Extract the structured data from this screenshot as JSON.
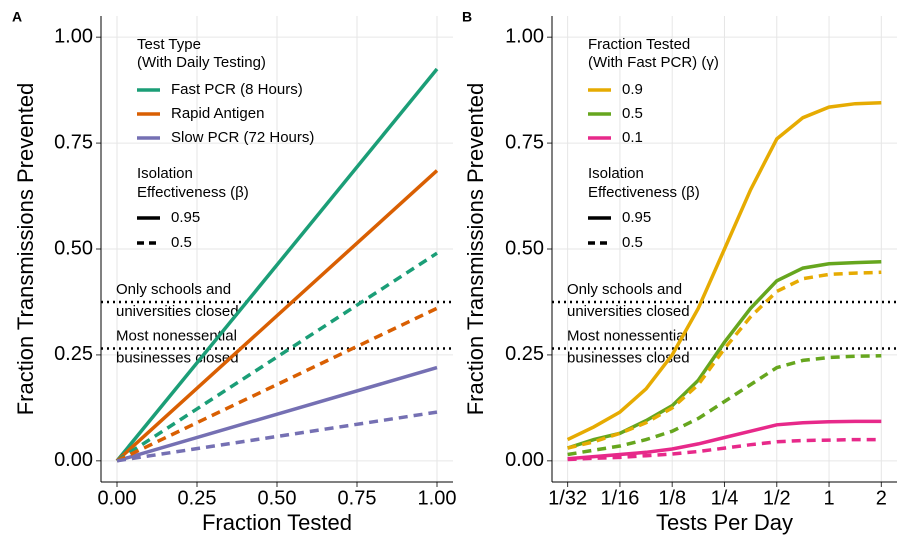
{
  "chart_data": [
    {
      "type": "line",
      "panel_label": "A",
      "xlabel": "Fraction Tested",
      "ylabel": "Fraction Transmissions Prevented",
      "x": [
        0,
        1
      ],
      "xlim": [
        -0.05,
        1.05
      ],
      "ylim": [
        -0.05,
        1.05
      ],
      "grid": true,
      "xticks": [
        {
          "value": 0,
          "label": "0.00"
        },
        {
          "value": 0.25,
          "label": "0.25"
        },
        {
          "value": 0.5,
          "label": "0.50"
        },
        {
          "value": 0.75,
          "label": "0.75"
        },
        {
          "value": 1,
          "label": "1.00"
        }
      ],
      "yticks": [
        {
          "value": 0,
          "label": "0.00"
        },
        {
          "value": 0.25,
          "label": "0.25"
        },
        {
          "value": 0.5,
          "label": "0.50"
        },
        {
          "value": 0.75,
          "label": "0.75"
        },
        {
          "value": 1,
          "label": "1.00"
        }
      ],
      "series": [
        {
          "color": "#1b9e77",
          "dash": "solid",
          "values": [
            0,
            0.925
          ]
        },
        {
          "color": "#d95f02",
          "dash": "solid",
          "values": [
            0,
            0.685
          ]
        },
        {
          "color": "#7570b3",
          "dash": "solid",
          "values": [
            0,
            0.22
          ]
        },
        {
          "color": "#1b9e77",
          "dash": "dashed",
          "values": [
            0,
            0.49
          ]
        },
        {
          "color": "#d95f02",
          "dash": "dashed",
          "values": [
            0,
            0.36
          ]
        },
        {
          "color": "#7570b3",
          "dash": "dashed",
          "values": [
            0,
            0.115
          ]
        }
      ],
      "legend": {
        "title": [
          "Test Type",
          "(With Daily Testing)"
        ],
        "labels": [
          "Fast PCR (8 Hours)",
          "Rapid Antigen",
          "Slow PCR (72 Hours)"
        ],
        "colors": [
          "#1b9e77",
          "#d95f02",
          "#7570b3"
        ]
      },
      "linetype_legend": {
        "title": [
          "Isolation",
          "Effectiveness (β)"
        ],
        "labels": [
          "0.95",
          "0.5"
        ],
        "dashes": [
          "solid",
          "dashed"
        ]
      },
      "hlines": [
        {
          "value": 0.375,
          "label": [
            "Only schools and",
            "universities closed"
          ]
        },
        {
          "value": 0.265,
          "label": [
            "Most nonessential",
            "businesses closed"
          ]
        }
      ]
    },
    {
      "type": "line",
      "panel_label": "B",
      "xlabel": "Tests Per Day",
      "ylabel": "Fraction Transmissions Prevented",
      "xscale": "log",
      "x": [
        0.03125,
        0.0442,
        0.0625,
        0.0884,
        0.125,
        0.1768,
        0.25,
        0.3536,
        0.5,
        0.7071,
        1,
        1.4142,
        2
      ],
      "xlim": [
        0.0254,
        2.462
      ],
      "ylim": [
        -0.05,
        1.05
      ],
      "grid": true,
      "xticks": [
        {
          "value": 0.03125,
          "label": "1/32"
        },
        {
          "value": 0.0625,
          "label": "1/16"
        },
        {
          "value": 0.125,
          "label": "1/8"
        },
        {
          "value": 0.25,
          "label": "1/4"
        },
        {
          "value": 0.5,
          "label": "1/2"
        },
        1,
        2
      ],
      "yticks": [
        {
          "value": 0,
          "label": "0.00"
        },
        {
          "value": 0.25,
          "label": "0.25"
        },
        {
          "value": 0.5,
          "label": "0.50"
        },
        {
          "value": 0.75,
          "label": "0.75"
        },
        {
          "value": 1,
          "label": "1.00"
        }
      ],
      "series": [
        {
          "color": "#e6ab02",
          "dash": "solid",
          "values": [
            0.05,
            0.08,
            0.115,
            0.17,
            0.25,
            0.36,
            0.5,
            0.64,
            0.76,
            0.81,
            0.835,
            0.843,
            0.845
          ]
        },
        {
          "color": "#66a61e",
          "dash": "solid",
          "values": [
            0.03,
            0.05,
            0.065,
            0.095,
            0.13,
            0.19,
            0.28,
            0.36,
            0.425,
            0.455,
            0.465,
            0.468,
            0.47
          ]
        },
        {
          "color": "#e7298a",
          "dash": "solid",
          "values": [
            0.005,
            0.01,
            0.015,
            0.02,
            0.028,
            0.04,
            0.055,
            0.07,
            0.085,
            0.09,
            0.092,
            0.093,
            0.093
          ]
        },
        {
          "color": "#e6ab02",
          "dash": "dashed",
          "values": [
            0.03,
            0.045,
            0.065,
            0.09,
            0.125,
            0.18,
            0.265,
            0.34,
            0.4,
            0.43,
            0.44,
            0.443,
            0.445
          ]
        },
        {
          "color": "#66a61e",
          "dash": "dashed",
          "values": [
            0.015,
            0.025,
            0.035,
            0.05,
            0.07,
            0.1,
            0.14,
            0.18,
            0.22,
            0.237,
            0.244,
            0.247,
            0.248
          ]
        },
        {
          "color": "#e7298a",
          "dash": "dashed",
          "values": [
            0.003,
            0.006,
            0.008,
            0.012,
            0.016,
            0.022,
            0.03,
            0.038,
            0.045,
            0.048,
            0.049,
            0.05,
            0.05
          ]
        }
      ],
      "legend": {
        "title": [
          "Fraction Tested",
          "(With Fast PCR) (γ)"
        ],
        "labels": [
          "0.9",
          "0.5",
          "0.1"
        ],
        "colors": [
          "#e6ab02",
          "#66a61e",
          "#e7298a"
        ]
      },
      "linetype_legend": {
        "title": [
          "Isolation",
          "Effectiveness (β)"
        ],
        "labels": [
          "0.95",
          "0.5"
        ],
        "dashes": [
          "solid",
          "dashed"
        ]
      },
      "hlines": [
        {
          "value": 0.375,
          "label": [
            "Only schools and",
            "universities closed"
          ]
        },
        {
          "value": 0.265,
          "label": [
            "Most nonessential",
            "businesses closed"
          ]
        }
      ]
    }
  ]
}
